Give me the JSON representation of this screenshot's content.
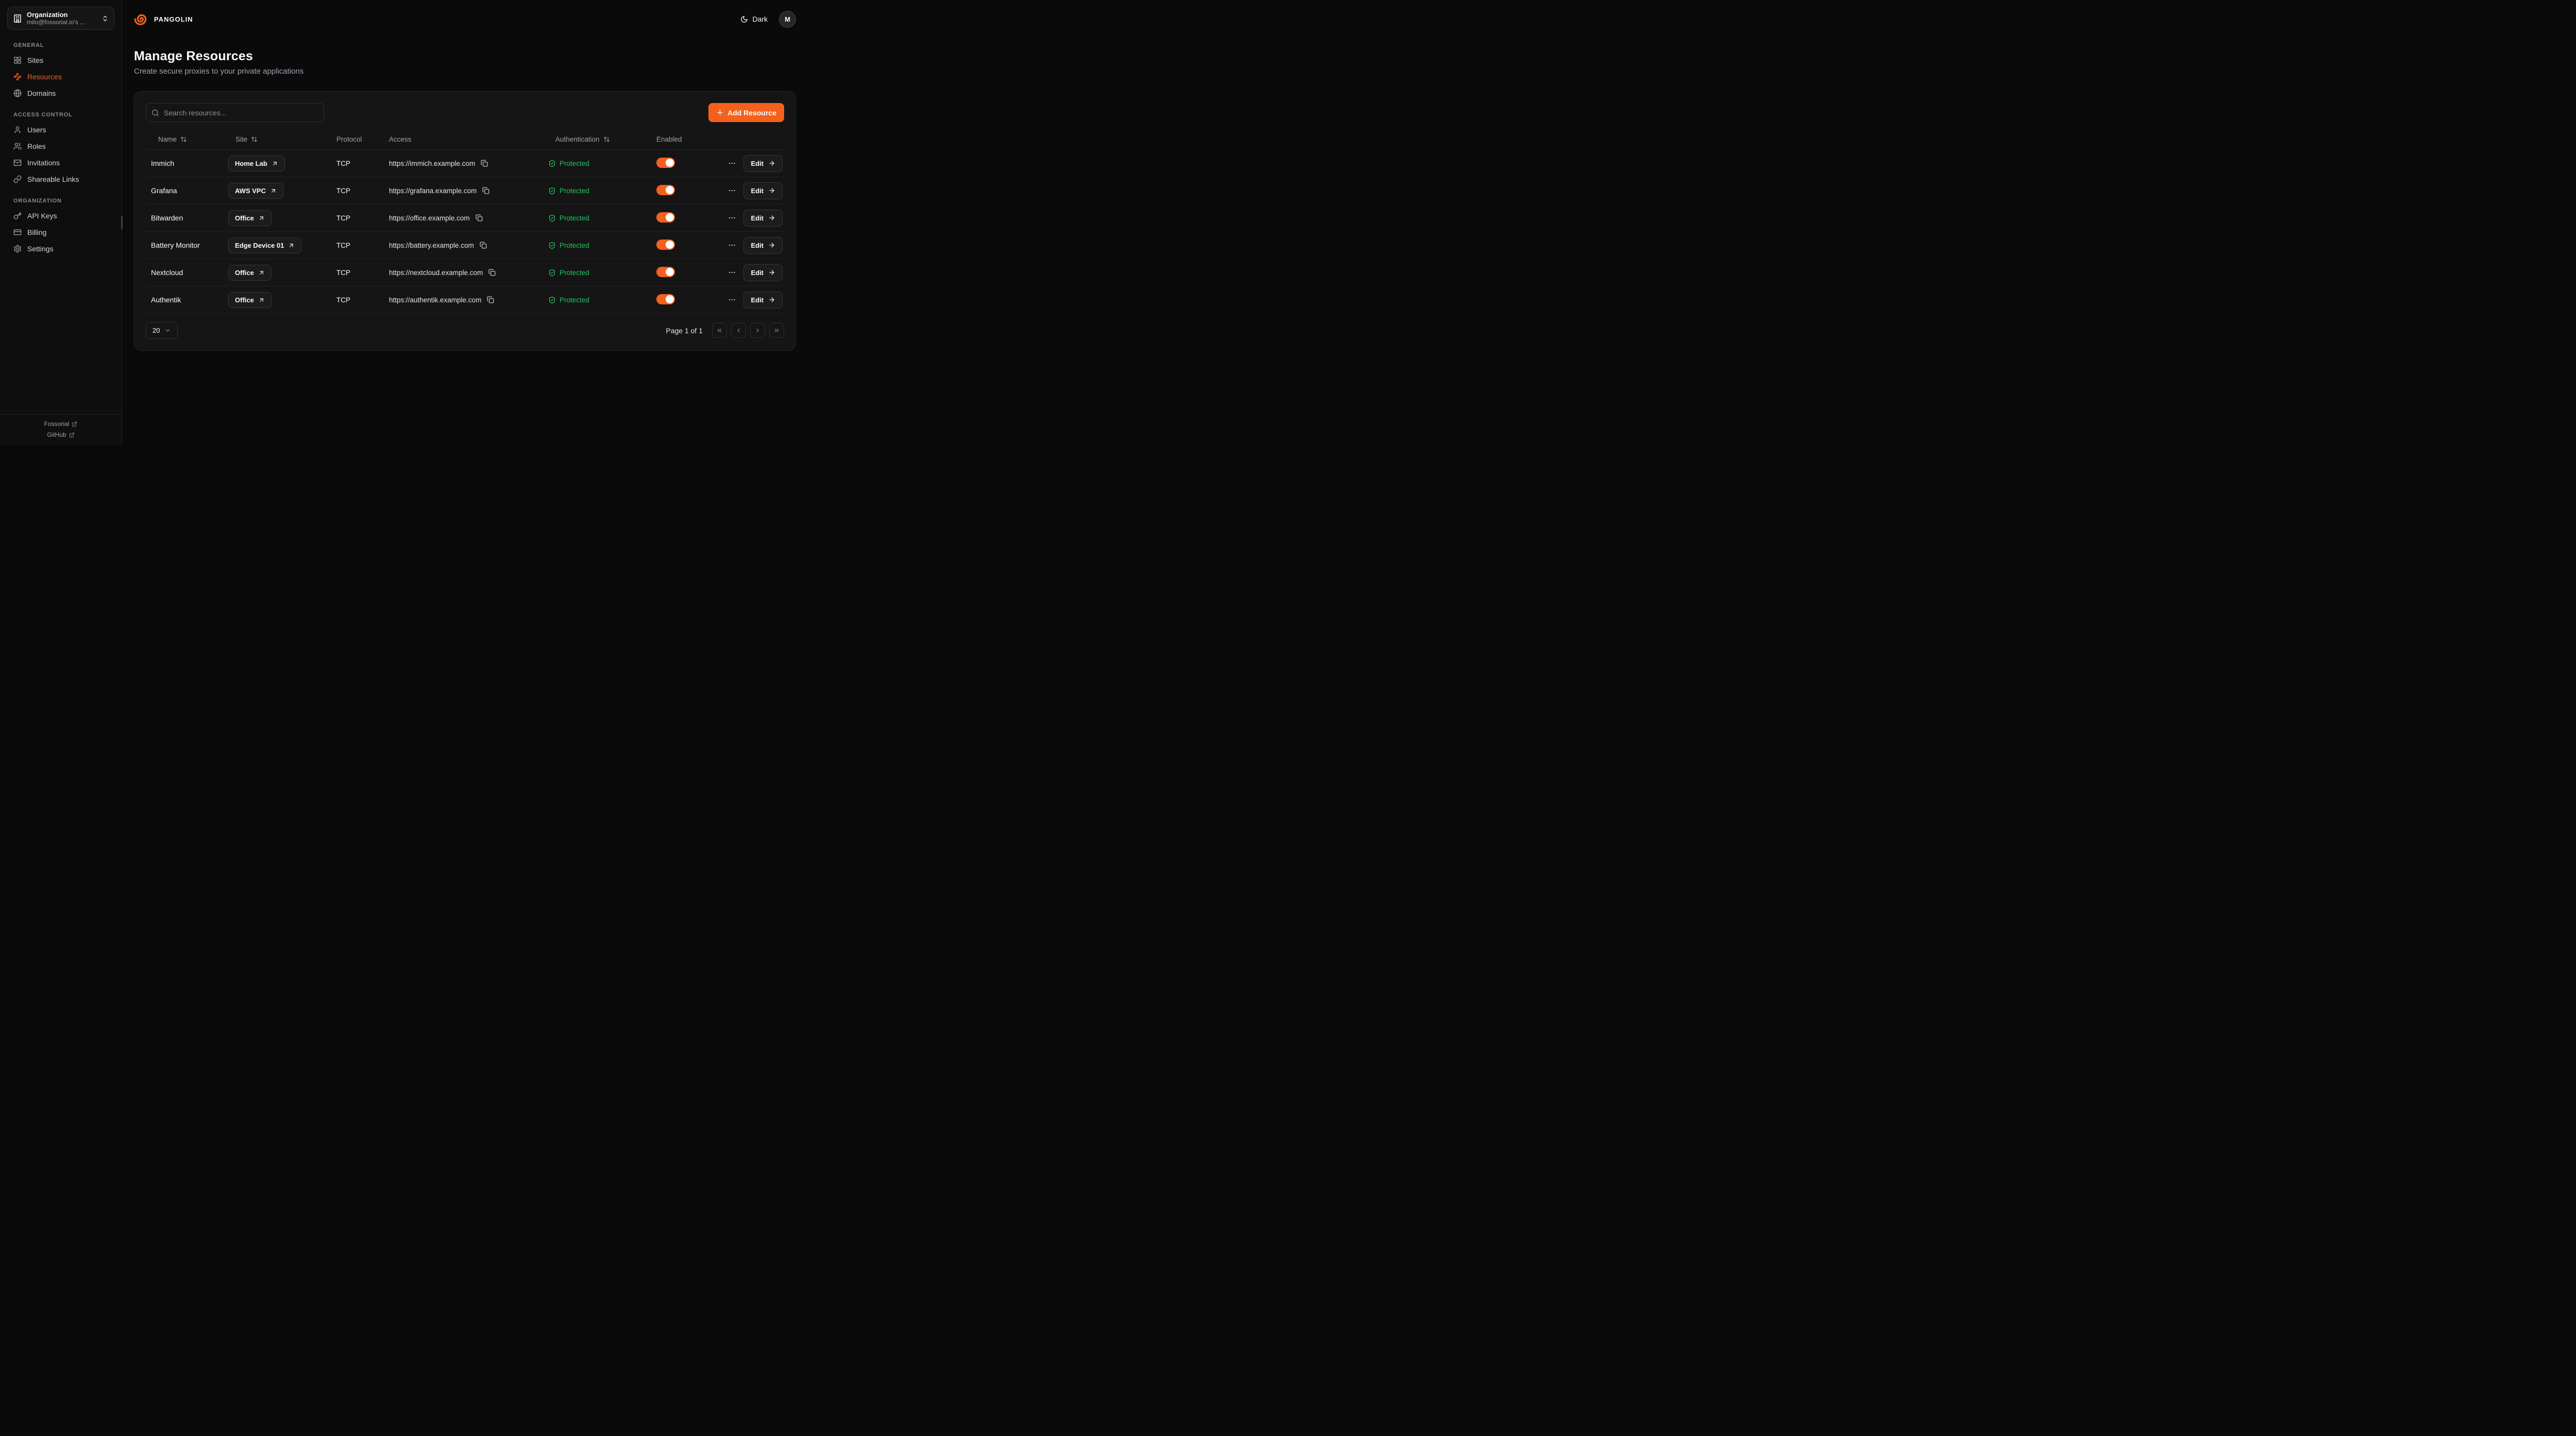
{
  "colors": {
    "accent": "#F3611D",
    "success": "#22C55E"
  },
  "sidebar": {
    "org": {
      "title": "Organization",
      "subtitle": "milo@fossorial.io's ...",
      "icon": "organization-icon"
    },
    "sections": [
      {
        "label": "GENERAL",
        "items": [
          {
            "label": "Sites",
            "icon": "layout-grid-icon",
            "active": false
          },
          {
            "label": "Resources",
            "icon": "waypoints-icon",
            "active": true
          },
          {
            "label": "Domains",
            "icon": "globe-icon",
            "active": false
          }
        ]
      },
      {
        "label": "ACCESS CONTROL",
        "items": [
          {
            "label": "Users",
            "icon": "user-icon",
            "active": false
          },
          {
            "label": "Roles",
            "icon": "users-icon",
            "active": false
          },
          {
            "label": "Invitations",
            "icon": "mail-icon",
            "active": false
          },
          {
            "label": "Shareable Links",
            "icon": "link-icon",
            "active": false
          }
        ]
      },
      {
        "label": "ORGANIZATION",
        "items": [
          {
            "label": "API Keys",
            "icon": "key-icon",
            "active": false
          },
          {
            "label": "Billing",
            "icon": "credit-card-icon",
            "active": false
          },
          {
            "label": "Settings",
            "icon": "settings-gear-icon",
            "active": false
          }
        ]
      }
    ],
    "footer_links": [
      {
        "label": "Fossorial",
        "icon": "external-link-icon"
      },
      {
        "label": "GitHub",
        "icon": "external-link-icon"
      }
    ]
  },
  "header": {
    "brand": "PANGOLIN",
    "logo": "pangolin-logo",
    "theme": {
      "label": "Dark",
      "icon": "moon-icon"
    },
    "avatar": {
      "initial": "M"
    }
  },
  "page": {
    "title": "Manage Resources",
    "subtitle": "Create secure proxies to your private applications"
  },
  "resources_panel": {
    "search": {
      "placeholder": "Search resources...",
      "icon": "search-icon"
    },
    "add_button": {
      "label": "Add Resource",
      "icon": "plus-icon"
    },
    "table": {
      "columns": [
        {
          "label": "Name",
          "sortable": true
        },
        {
          "label": "Site",
          "sortable": true
        },
        {
          "label": "Protocol",
          "sortable": false
        },
        {
          "label": "Access",
          "sortable": false
        },
        {
          "label": "Authentication",
          "sortable": true
        },
        {
          "label": "Enabled",
          "sortable": false
        }
      ],
      "rows": [
        {
          "name": "Immich",
          "site": "Home Lab",
          "protocol": "TCP",
          "access": "https://immich.example.com",
          "authentication": "Protected",
          "enabled": true
        },
        {
          "name": "Grafana",
          "site": "AWS VPC",
          "protocol": "TCP",
          "access": "https://grafana.example.com",
          "authentication": "Protected",
          "enabled": true
        },
        {
          "name": "Bitwarden",
          "site": "Office",
          "protocol": "TCP",
          "access": "https://office.example.com",
          "authentication": "Protected",
          "enabled": true
        },
        {
          "name": "Battery Monitor",
          "site": "Edge Device 01",
          "protocol": "TCP",
          "access": "https://battery.example.com",
          "authentication": "Protected",
          "enabled": true
        },
        {
          "name": "Nextcloud",
          "site": "Office",
          "protocol": "TCP",
          "access": "https://nextcloud.example.com",
          "authentication": "Protected",
          "enabled": true
        },
        {
          "name": "Authentik",
          "site": "Office",
          "protocol": "TCP",
          "access": "https://authentik.example.com",
          "authentication": "Protected",
          "enabled": true
        }
      ],
      "edit_label": "Edit"
    },
    "pagination": {
      "page_size": "20",
      "info": "Page 1 of 1"
    }
  }
}
